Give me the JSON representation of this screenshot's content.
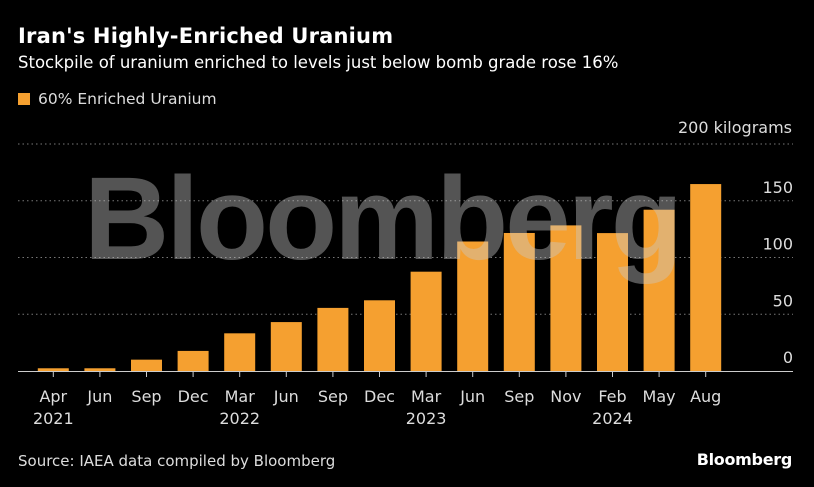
{
  "header": {
    "title": "Iran's Highly-Enriched Uranium",
    "subtitle": "Stockpile of uranium enriched to levels just below bomb grade rose 16%"
  },
  "footer": {
    "source": "Source: IAEA data compiled by Bloomberg",
    "brand": "Bloomberg"
  },
  "watermark": "Bloomberg",
  "colors": {
    "bar": "#f5a030",
    "background": "#000000",
    "grid": "#777777",
    "text": "#ffffff"
  },
  "chart_data": {
    "type": "bar",
    "unit_label": "200 kilograms",
    "categories": [
      "Apr 2021",
      "Jun 2021",
      "Sep 2021",
      "Dec 2021",
      "Mar 2022",
      "Jun 2022",
      "Sep 2022",
      "Dec 2022",
      "Mar 2023",
      "Jun 2023",
      "Sep 2023",
      "Nov 2023",
      "Feb 2024",
      "May 2024",
      "Aug 2024"
    ],
    "tick_month_labels": [
      "Apr",
      "Jun",
      "Sep",
      "Dec",
      "Mar",
      "Jun",
      "Sep",
      "Dec",
      "Mar",
      "Jun",
      "Sep",
      "Nov",
      "Feb",
      "May",
      "Aug"
    ],
    "tick_year_labels": [
      "2021",
      "",
      "",
      "",
      "2022",
      "",
      "",
      "",
      "2023",
      "",
      "",
      "",
      "2024",
      "",
      ""
    ],
    "series": [
      {
        "name": "60% Enriched Uranium",
        "values": [
          2.4,
          2.4,
          10,
          17.7,
          33.2,
          43.1,
          55.6,
          62.3,
          87.5,
          114.1,
          121.6,
          128.3,
          121.5,
          142.1,
          164.7
        ]
      }
    ],
    "yticks": [
      0,
      50,
      100,
      150
    ],
    "ylim": [
      0,
      200
    ],
    "grid": true,
    "legend_position": "top-left"
  }
}
